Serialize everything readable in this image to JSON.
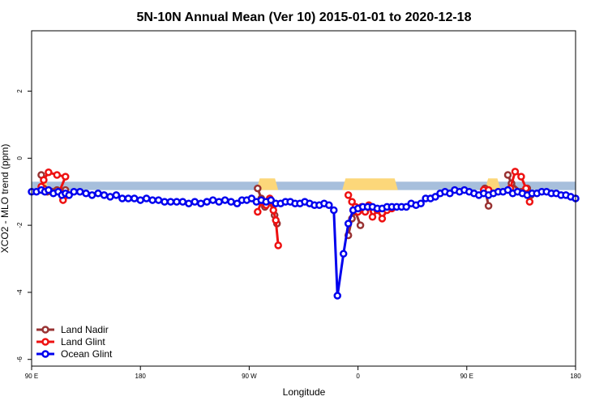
{
  "chart_data": {
    "type": "line",
    "title": "5N-10N Annual Mean (Ver 10)   2015-01-01 to 2020-12-18",
    "xlabel": "Longitude",
    "ylabel": "XCO2 - MLO trend (ppm)",
    "x_ticks": [
      {
        "value": 90,
        "label": "90 E"
      },
      {
        "value": 180,
        "label": "180"
      },
      {
        "value": 270,
        "label": "90 W"
      },
      {
        "value": 360,
        "label": "0"
      },
      {
        "value": 450,
        "label": "90 E"
      },
      {
        "value": 540,
        "label": "180"
      }
    ],
    "y_ticks": [
      {
        "value": 2,
        "label": "2"
      },
      {
        "value": 0,
        "label": "0"
      },
      {
        "value": -2,
        "label": "-2"
      },
      {
        "value": -4,
        "label": "-4"
      },
      {
        "value": -6,
        "label": "-6"
      }
    ],
    "xlim": [
      90,
      540
    ],
    "ylim": [
      -6.2,
      3.8
    ],
    "land_band": {
      "y_top": -0.7,
      "y_bottom": -0.95,
      "ocean_color": "#a7bfdc",
      "land_color": "#fcd77a",
      "land_ranges": [
        [
          97,
          104
        ],
        [
          276,
          294
        ],
        [
          347,
          393
        ],
        [
          465,
          478
        ]
      ]
    },
    "series": [
      {
        "name": "Land Nadir",
        "color": "#993333",
        "segments": [
          [
            [
              98,
              -0.5
            ],
            [
              100,
              -0.9
            ],
            [
              103,
              -1.0
            ],
            [
              107,
              -1.0
            ],
            [
              111,
              -0.95
            ],
            [
              118,
              -0.95
            ]
          ],
          [
            [
              277,
              -0.9
            ],
            [
              280,
              -1.2
            ],
            [
              283,
              -1.45
            ],
            [
              287,
              -1.3
            ],
            [
              291,
              -1.7
            ],
            [
              293,
              -1.95
            ]
          ],
          [
            [
              352,
              -2.3
            ],
            [
              355,
              -1.8
            ],
            [
              358,
              -1.6
            ],
            [
              362,
              -2.0
            ]
          ],
          [
            [
              465,
              -0.9
            ],
            [
              468,
              -1.42
            ]
          ],
          [
            [
              484,
              -0.5
            ],
            [
              487,
              -0.75
            ],
            [
              495,
              -1.0
            ],
            [
              500,
              -0.9
            ],
            [
              503,
              -1.1
            ]
          ]
        ]
      },
      {
        "name": "Land Glint",
        "color": "#ee1111",
        "segments": [
          [
            [
              98,
              -0.85
            ],
            [
              100,
              -0.65
            ],
            [
              104,
              -0.42
            ],
            [
              111,
              -0.5
            ],
            [
              118,
              -0.55
            ],
            [
              113,
              -1.0
            ],
            [
              116,
              -1.25
            ],
            [
              119,
              -1.1
            ]
          ],
          [
            [
              277,
              -1.6
            ],
            [
              280,
              -1.3
            ],
            [
              284,
              -1.4
            ],
            [
              287,
              -1.2
            ],
            [
              290,
              -1.55
            ],
            [
              292,
              -1.85
            ],
            [
              294,
              -2.6
            ]
          ],
          [
            [
              352,
              -1.1
            ],
            [
              355,
              -1.3
            ],
            [
              358,
              -1.45
            ],
            [
              360,
              -1.6
            ],
            [
              363,
              -1.45
            ],
            [
              366,
              -1.6
            ],
            [
              369,
              -1.4
            ],
            [
              372,
              -1.75
            ],
            [
              376,
              -1.55
            ],
            [
              380,
              -1.8
            ],
            [
              384,
              -1.55
            ],
            [
              388,
              -1.5
            ]
          ],
          [
            [
              464,
              -0.95
            ],
            [
              468,
              -0.95
            ]
          ],
          [
            [
              486,
              -0.9
            ],
            [
              490,
              -0.4
            ],
            [
              495,
              -0.55
            ],
            [
              499,
              -0.9
            ],
            [
              502,
              -1.3
            ]
          ]
        ]
      },
      {
        "name": "Ocean Glint",
        "color": "#0000ee",
        "segments": [
          [
            [
              90,
              -1.0
            ],
            [
              94,
              -1.0
            ],
            [
              98,
              -0.95
            ],
            [
              101,
              -1.0
            ],
            [
              104,
              -0.95
            ],
            [
              108,
              -1.05
            ],
            [
              112,
              -1.0
            ],
            [
              115,
              -1.1
            ],
            [
              118,
              -1.05
            ],
            [
              121,
              -1.1
            ],
            [
              125,
              -1.0
            ],
            [
              130,
              -1.0
            ],
            [
              135,
              -1.05
            ],
            [
              140,
              -1.1
            ],
            [
              145,
              -1.05
            ],
            [
              150,
              -1.1
            ],
            [
              155,
              -1.15
            ],
            [
              160,
              -1.1
            ],
            [
              165,
              -1.2
            ],
            [
              170,
              -1.2
            ],
            [
              175,
              -1.2
            ],
            [
              180,
              -1.25
            ],
            [
              185,
              -1.2
            ],
            [
              190,
              -1.25
            ],
            [
              195,
              -1.25
            ],
            [
              200,
              -1.3
            ],
            [
              205,
              -1.3
            ],
            [
              210,
              -1.3
            ],
            [
              215,
              -1.3
            ],
            [
              220,
              -1.35
            ],
            [
              225,
              -1.3
            ],
            [
              230,
              -1.35
            ],
            [
              235,
              -1.3
            ],
            [
              240,
              -1.25
            ],
            [
              245,
              -1.3
            ],
            [
              250,
              -1.25
            ],
            [
              255,
              -1.3
            ],
            [
              260,
              -1.35
            ],
            [
              264,
              -1.25
            ],
            [
              268,
              -1.25
            ],
            [
              272,
              -1.2
            ],
            [
              276,
              -1.3
            ],
            [
              280,
              -1.25
            ],
            [
              284,
              -1.3
            ],
            [
              288,
              -1.25
            ],
            [
              292,
              -1.35
            ],
            [
              296,
              -1.35
            ],
            [
              300,
              -1.3
            ],
            [
              304,
              -1.3
            ],
            [
              308,
              -1.35
            ],
            [
              312,
              -1.35
            ],
            [
              316,
              -1.3
            ],
            [
              320,
              -1.35
            ],
            [
              324,
              -1.4
            ],
            [
              328,
              -1.4
            ],
            [
              332,
              -1.35
            ],
            [
              336,
              -1.4
            ],
            [
              340,
              -1.55
            ],
            [
              343,
              -4.1
            ],
            [
              348,
              -2.85
            ],
            [
              352,
              -1.95
            ],
            [
              356,
              -1.55
            ],
            [
              360,
              -1.5
            ],
            [
              364,
              -1.45
            ],
            [
              368,
              -1.45
            ],
            [
              372,
              -1.45
            ],
            [
              376,
              -1.5
            ],
            [
              380,
              -1.5
            ],
            [
              384,
              -1.45
            ],
            [
              388,
              -1.45
            ],
            [
              392,
              -1.45
            ],
            [
              396,
              -1.45
            ],
            [
              400,
              -1.45
            ],
            [
              404,
              -1.35
            ],
            [
              408,
              -1.4
            ],
            [
              412,
              -1.35
            ],
            [
              416,
              -1.2
            ],
            [
              420,
              -1.2
            ],
            [
              424,
              -1.15
            ],
            [
              428,
              -1.05
            ],
            [
              432,
              -1.0
            ],
            [
              436,
              -1.05
            ],
            [
              440,
              -0.95
            ],
            [
              444,
              -1.0
            ],
            [
              448,
              -0.95
            ],
            [
              452,
              -1.0
            ],
            [
              456,
              -1.05
            ],
            [
              460,
              -1.1
            ],
            [
              464,
              -1.05
            ],
            [
              468,
              -1.1
            ],
            [
              472,
              -1.05
            ],
            [
              476,
              -1.0
            ],
            [
              480,
              -1.0
            ],
            [
              484,
              -0.95
            ],
            [
              488,
              -1.05
            ],
            [
              492,
              -1.0
            ],
            [
              496,
              -1.05
            ],
            [
              500,
              -1.1
            ],
            [
              504,
              -1.05
            ],
            [
              508,
              -1.05
            ],
            [
              512,
              -1.0
            ],
            [
              516,
              -1.0
            ],
            [
              520,
              -1.05
            ],
            [
              524,
              -1.05
            ],
            [
              528,
              -1.1
            ],
            [
              532,
              -1.1
            ],
            [
              536,
              -1.15
            ],
            [
              540,
              -1.2
            ]
          ]
        ]
      }
    ],
    "legend_position": "bottom-left",
    "grid": false
  }
}
